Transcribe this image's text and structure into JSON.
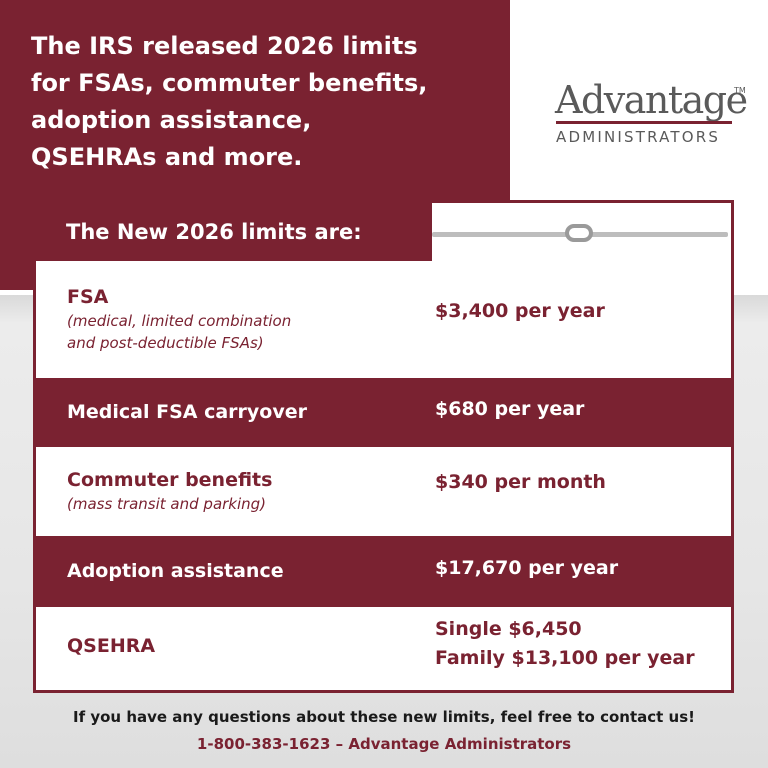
{
  "header": {
    "title_lines": [
      "The IRS released 2026 limits",
      "for FSAs, commuter benefits,",
      "adoption assistance,",
      "QSEHRAs and more."
    ]
  },
  "logo": {
    "name": "Advantage",
    "trademark": "TM",
    "subtitle": "ADMINISTRATORS"
  },
  "table": {
    "heading": "The New 2026 limits are:",
    "rows": [
      {
        "label": "FSA",
        "note_lines": [
          "(medical, limited combination",
          "and post-deductible FSAs)"
        ],
        "value_lines": [
          "$3,400 per year"
        ]
      },
      {
        "label": "Medical FSA carryover",
        "note_lines": [],
        "value_lines": [
          "$680 per year"
        ]
      },
      {
        "label": "Commuter benefits",
        "note_lines": [
          "(mass transit and parking)"
        ],
        "value_lines": [
          "$340 per month"
        ]
      },
      {
        "label": "Adoption assistance",
        "note_lines": [],
        "value_lines": [
          "$17,670 per year"
        ]
      },
      {
        "label": "QSEHRA",
        "note_lines": [],
        "value_lines": [
          "Single $6,450",
          "Family $13,100 per year"
        ]
      }
    ]
  },
  "footer": {
    "lines": [
      "If you have any questions about these new limits, feel free to contact us!",
      "1-800-383-1623 – Advantage Administrators"
    ]
  }
}
